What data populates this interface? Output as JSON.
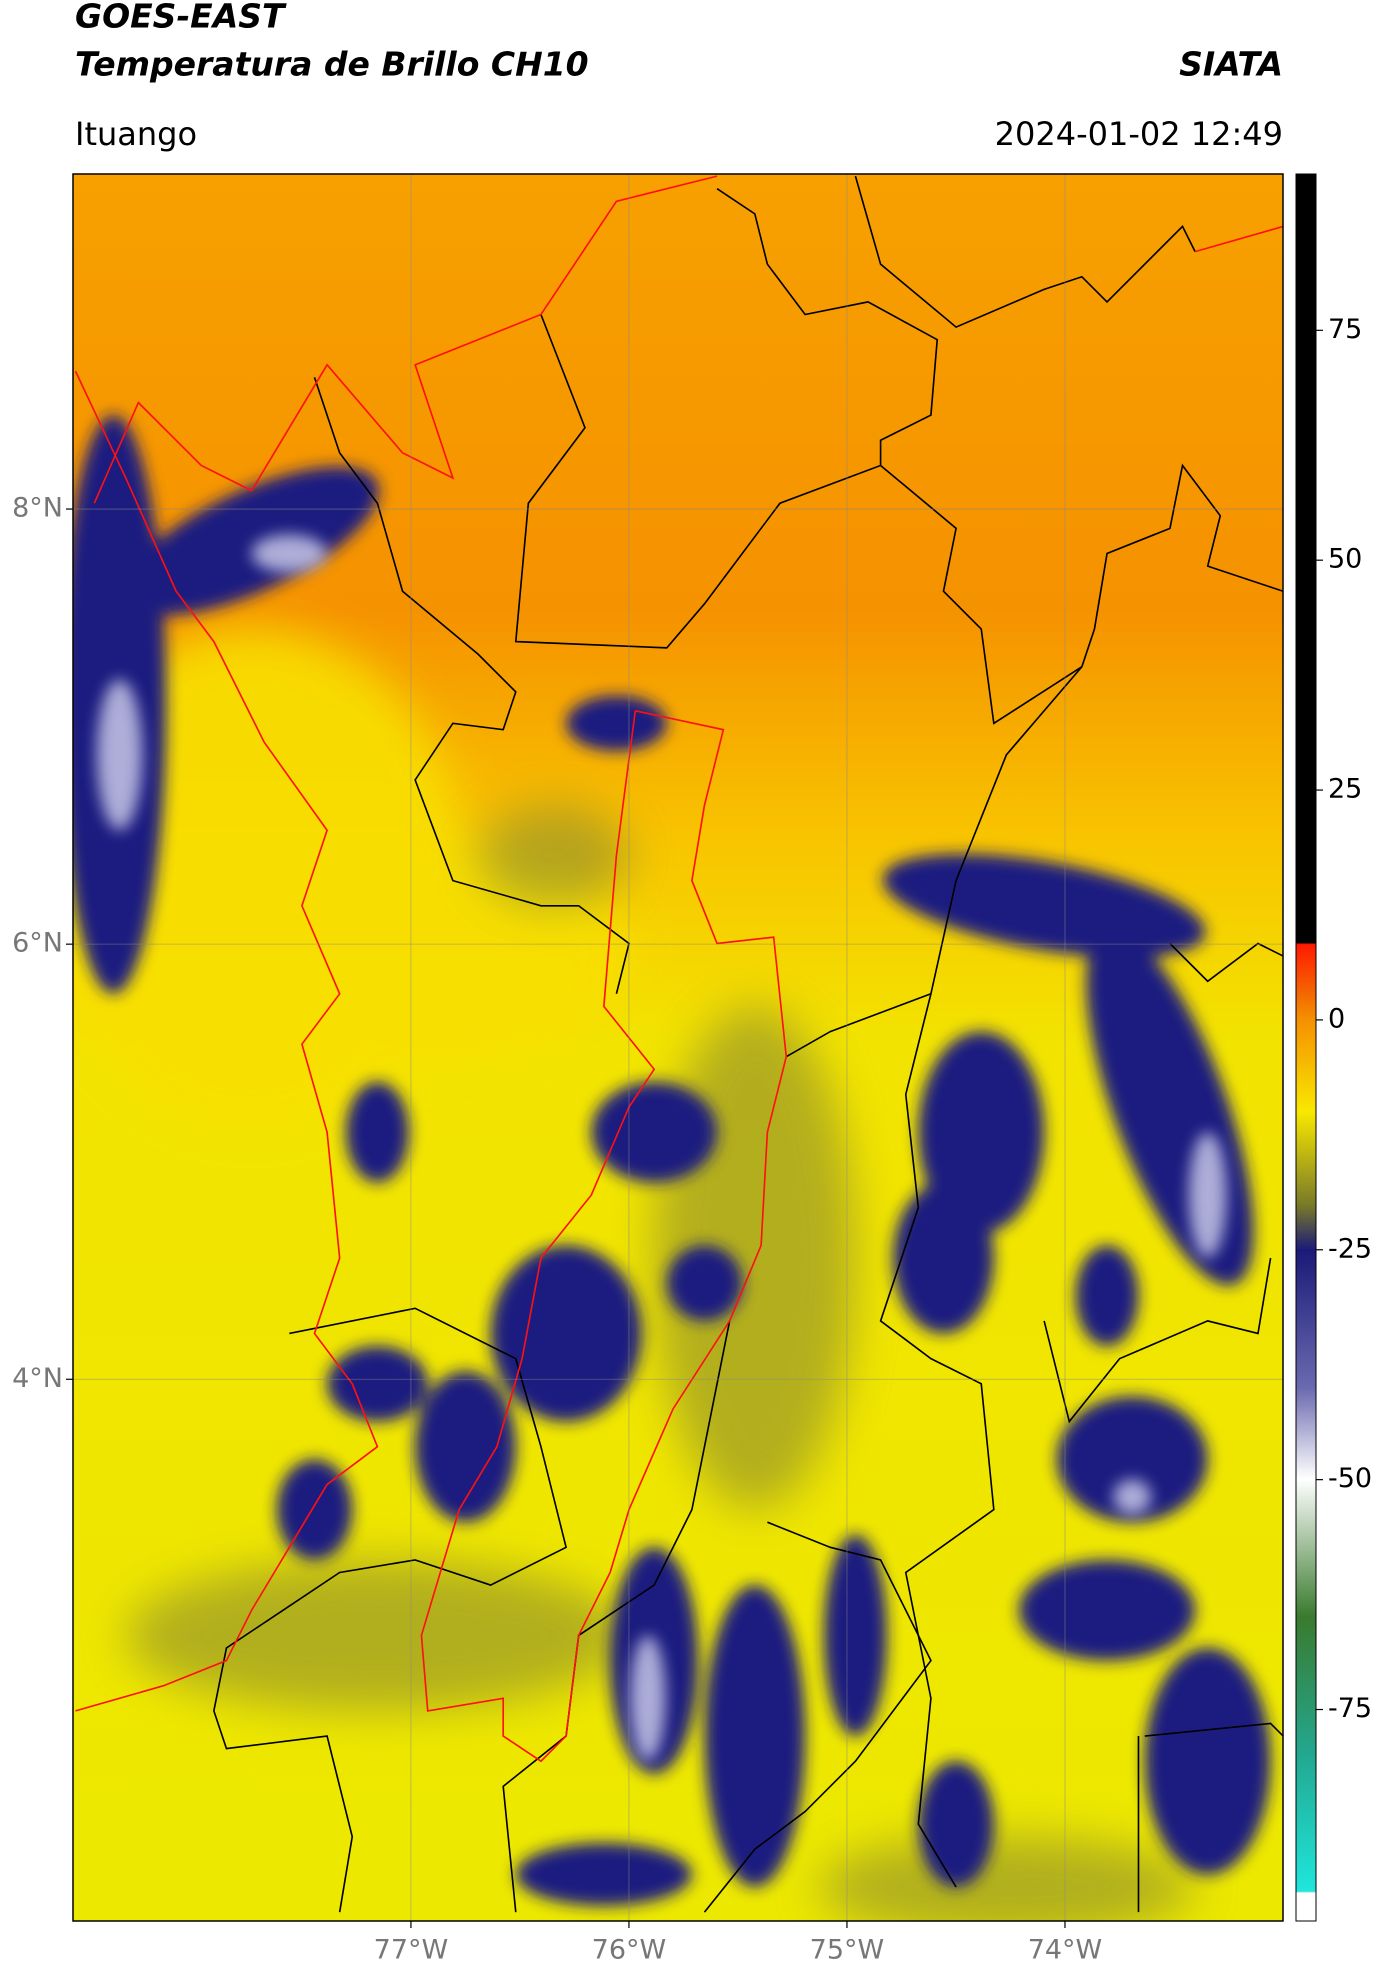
{
  "header": {
    "title": "GOES-EAST",
    "subtitle": "Temperatura de Brillo CH10",
    "brand": "SIATA",
    "location": "Ituango",
    "timestamp": "2024-01-02 12:49"
  },
  "map": {
    "xlim": [
      -78.55,
      -73
    ],
    "ylim": [
      1.51,
      9.54
    ],
    "xticks": [
      {
        "value": -77,
        "label": "77°W"
      },
      {
        "value": -76,
        "label": "76°W"
      },
      {
        "value": -75,
        "label": "75°W"
      },
      {
        "value": -74,
        "label": "74°W"
      }
    ],
    "yticks": [
      {
        "value": 8,
        "label": "8°N"
      },
      {
        "value": 6,
        "label": "6°N"
      },
      {
        "value": 4,
        "label": "4°N"
      }
    ],
    "grid": true
  },
  "colorbar": {
    "lim": [
      -98,
      92
    ],
    "ticks": [
      75,
      50,
      25,
      0,
      -25,
      -50,
      -75
    ]
  }
}
